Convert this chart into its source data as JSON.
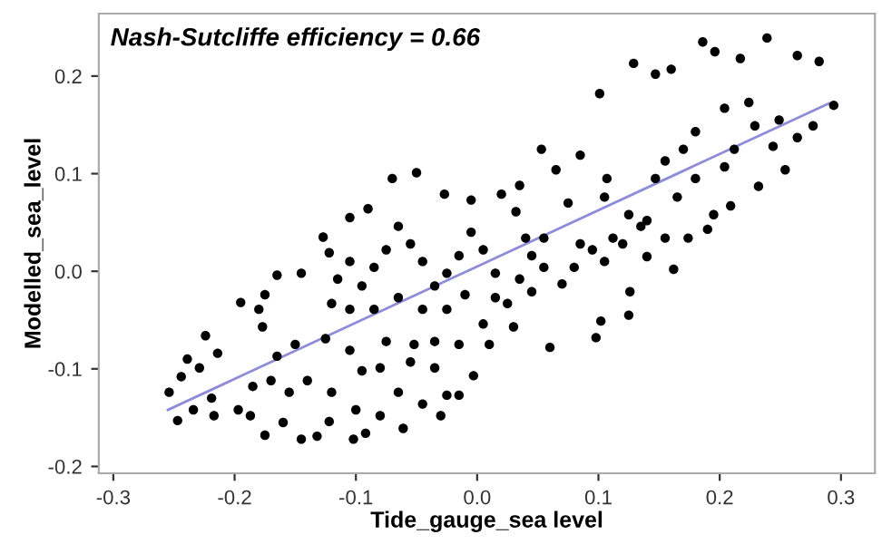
{
  "chart_data": {
    "type": "scatter",
    "xlabel": "Tide_gauge_sea level",
    "ylabel": "Modelled_sea_level",
    "annotations": [
      "Nash-Sutcliffe efficiency = 0.66"
    ],
    "xlim": [
      -0.312,
      0.328
    ],
    "ylim": [
      -0.207,
      0.264
    ],
    "xticks": [
      -0.3,
      -0.2,
      -0.1,
      {
        "value": 0,
        "label": "0.0"
      },
      0.1,
      0.2,
      0.3
    ],
    "yticks": [
      -0.2,
      -0.1,
      {
        "value": 0,
        "label": "0.0"
      },
      0.1,
      0.2
    ],
    "grid": false,
    "legend": false,
    "marker": "circle",
    "series": [
      {
        "color": "#000000",
        "x": [
          0.239,
          0.186,
          0.196,
          0.217,
          0.129,
          0.147,
          0.16,
          0.101,
          0.282,
          0.264,
          0.294,
          0.229,
          0.244,
          0.254,
          0.232,
          0.209,
          0.19,
          0.174,
          0.162,
          0.125,
          0.126,
          0.14,
          0.098,
          0.102,
          0.07,
          0.06,
          0.053,
          0.065,
          0.085,
          0.107,
          0.125,
          0.135,
          0.147,
          0.155,
          0.18,
          0.204,
          0.224,
          0.249,
          0.264,
          0.277,
          0.112,
          0.095,
          0.08,
          0.04,
          0.032,
          0.02,
          -0.005,
          -0.027,
          -0.05,
          -0.07,
          -0.09,
          -0.105,
          -0.127,
          -0.122,
          -0.145,
          -0.165,
          -0.175,
          -0.195,
          -0.177,
          -0.18,
          -0.224,
          -0.214,
          -0.229,
          -0.239,
          -0.244,
          -0.254,
          -0.247,
          -0.234,
          -0.217,
          -0.219,
          -0.197,
          -0.187,
          -0.175,
          -0.16,
          -0.145,
          -0.132,
          -0.122,
          -0.102,
          -0.092,
          -0.08,
          -0.061,
          -0.045,
          -0.03,
          -0.025,
          -0.015,
          -0.003,
          -0.035,
          -0.055,
          -0.065,
          -0.08,
          -0.095,
          -0.1,
          -0.12,
          -0.14,
          -0.155,
          -0.165,
          -0.17,
          -0.185,
          -0.15,
          -0.125,
          -0.105,
          -0.075,
          -0.052,
          -0.035,
          -0.015,
          0.01,
          0.005,
          0.03,
          0.025,
          0.045,
          0.055,
          0.045,
          0.035,
          0.015,
          0.005,
          -0.005,
          -0.015,
          -0.025,
          -0.035,
          -0.045,
          -0.055,
          -0.065,
          -0.075,
          -0.085,
          -0.095,
          -0.105,
          -0.115,
          -0.12,
          -0.105,
          -0.085,
          -0.065,
          -0.045,
          -0.025,
          -0.01,
          0.015,
          0.055,
          0.075,
          0.105,
          0.14,
          0.165,
          0.18,
          0.204,
          0.212,
          0.17,
          0.195,
          0.12,
          0.105,
          0.085,
          0.155,
          0.035
        ],
        "values": [
          0.239,
          0.235,
          0.225,
          0.218,
          0.213,
          0.202,
          0.207,
          0.182,
          0.215,
          0.221,
          0.17,
          0.149,
          0.128,
          0.104,
          0.087,
          0.067,
          0.043,
          0.034,
          0.002,
          -0.045,
          -0.021,
          0.015,
          -0.068,
          -0.051,
          -0.013,
          -0.078,
          0.125,
          0.104,
          0.119,
          0.095,
          0.058,
          0.046,
          0.095,
          0.113,
          0.143,
          0.167,
          0.173,
          0.155,
          0.137,
          0.149,
          0.034,
          0.022,
          0.004,
          0.034,
          0.061,
          0.079,
          0.073,
          0.079,
          0.101,
          0.095,
          0.064,
          0.055,
          0.035,
          0.019,
          -0.002,
          -0.004,
          -0.024,
          -0.032,
          -0.057,
          -0.039,
          -0.066,
          -0.084,
          -0.099,
          -0.09,
          -0.108,
          -0.124,
          -0.153,
          -0.142,
          -0.148,
          -0.13,
          -0.142,
          -0.148,
          -0.168,
          -0.155,
          -0.172,
          -0.169,
          -0.154,
          -0.172,
          -0.166,
          -0.148,
          -0.161,
          -0.136,
          -0.148,
          -0.127,
          -0.127,
          -0.107,
          -0.099,
          -0.093,
          -0.124,
          -0.099,
          -0.102,
          -0.142,
          -0.124,
          -0.112,
          -0.124,
          -0.087,
          -0.112,
          -0.118,
          -0.075,
          -0.069,
          -0.081,
          -0.072,
          -0.075,
          -0.072,
          -0.075,
          -0.075,
          -0.054,
          -0.057,
          -0.033,
          -0.021,
          0.004,
          0.016,
          -0.008,
          -0.002,
          0.022,
          0.04,
          0.016,
          -0.002,
          -0.015,
          0.01,
          0.028,
          0.046,
          0.022,
          0.004,
          -0.015,
          0.01,
          -0.008,
          -0.033,
          -0.039,
          -0.039,
          -0.027,
          -0.039,
          -0.039,
          -0.024,
          -0.027,
          0.034,
          0.07,
          0.076,
          0.052,
          0.076,
          0.095,
          0.107,
          0.125,
          0.125,
          0.058,
          0.028,
          0.01,
          0.028,
          0.034,
          0.088
        ]
      },
      {
        "type": "line",
        "color": "#8c8cd8",
        "marker": "none",
        "x": [
          -0.255,
          0.29
        ],
        "values": [
          -0.142,
          0.172
        ]
      }
    ]
  }
}
